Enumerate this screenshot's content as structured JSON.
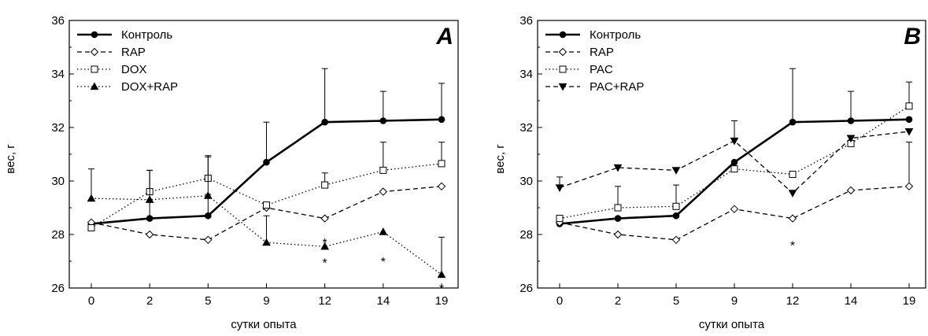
{
  "chart_data": [
    {
      "type": "line",
      "panel_label": "A",
      "xlabel": "сутки опыта",
      "ylabel": "вес, г",
      "categories": [
        "0",
        "2",
        "5",
        "9",
        "12",
        "14",
        "19"
      ],
      "ylim": [
        26,
        36
      ],
      "yticks": [
        "26",
        "28",
        "30",
        "32",
        "34",
        "36"
      ],
      "legend_position": "top-left",
      "series": [
        {
          "name": "Контроль",
          "style": "solid-thick",
          "marker": "circle-filled",
          "values": [
            28.4,
            28.6,
            28.7,
            30.7,
            32.2,
            32.25,
            32.3
          ],
          "err": [
            0,
            0.7,
            0.8,
            1.5,
            2.0,
            1.1,
            1.35
          ]
        },
        {
          "name": "RAP",
          "style": "dashed",
          "marker": "diamond-open",
          "values": [
            28.45,
            28.0,
            27.8,
            29.0,
            28.6,
            29.6,
            29.8
          ],
          "err": [
            0,
            0,
            0,
            0,
            0,
            0,
            0
          ]
        },
        {
          "name": "DOX",
          "style": "dotted",
          "marker": "square-open",
          "values": [
            28.25,
            29.6,
            30.1,
            29.1,
            29.85,
            30.4,
            30.65
          ],
          "err": [
            0,
            0.8,
            0.85,
            0,
            0.45,
            1.05,
            0.8
          ]
        },
        {
          "name": "DOX+RAP",
          "style": "dotted",
          "marker": "triangle-filled",
          "values": [
            29.35,
            29.3,
            29.45,
            27.7,
            27.55,
            28.1,
            26.5
          ],
          "err": [
            1.1,
            1.1,
            1.45,
            1.0,
            0,
            0,
            1.4
          ]
        }
      ],
      "annotations": [
        {
          "text": "*",
          "x": "12",
          "y": 27.7
        },
        {
          "text": "*",
          "x": "12",
          "y": 26.95
        },
        {
          "text": "*",
          "x": "14",
          "y": 27.0
        },
        {
          "text": "*",
          "x": "19",
          "y": 26.0
        }
      ]
    },
    {
      "type": "line",
      "panel_label": "B",
      "xlabel": "сутки опыта",
      "ylabel": "вес, г",
      "categories": [
        "0",
        "2",
        "5",
        "9",
        "12",
        "14",
        "19"
      ],
      "ylim": [
        26,
        36
      ],
      "yticks": [
        "26",
        "28",
        "30",
        "32",
        "34",
        "36"
      ],
      "legend_position": "top-left",
      "series": [
        {
          "name": "Контроль",
          "style": "solid-thick",
          "marker": "circle-filled",
          "values": [
            28.4,
            28.6,
            28.7,
            30.7,
            32.2,
            32.25,
            32.3
          ],
          "err": [
            0,
            0,
            0,
            0,
            2.0,
            1.1,
            0
          ]
        },
        {
          "name": "RAP",
          "style": "dashed",
          "marker": "diamond-open",
          "values": [
            28.45,
            28.0,
            27.8,
            28.95,
            28.6,
            29.65,
            29.8
          ],
          "err": [
            0,
            0,
            0,
            0,
            0,
            0,
            1.65
          ]
        },
        {
          "name": "PAC",
          "style": "dotted",
          "marker": "square-open",
          "values": [
            28.6,
            29.0,
            29.05,
            30.45,
            30.25,
            31.4,
            32.8
          ],
          "err": [
            0,
            0.8,
            0.8,
            0,
            0,
            0,
            0.9
          ]
        },
        {
          "name": "PAC+RAP",
          "style": "dashed",
          "marker": "triangle-down-filled",
          "values": [
            29.75,
            30.5,
            30.4,
            31.5,
            29.55,
            31.6,
            31.85
          ],
          "err": [
            0.4,
            0,
            0,
            0.75,
            0,
            0,
            0
          ]
        }
      ],
      "annotations": [
        {
          "text": "*",
          "x": "12",
          "y": 27.6
        }
      ]
    }
  ]
}
